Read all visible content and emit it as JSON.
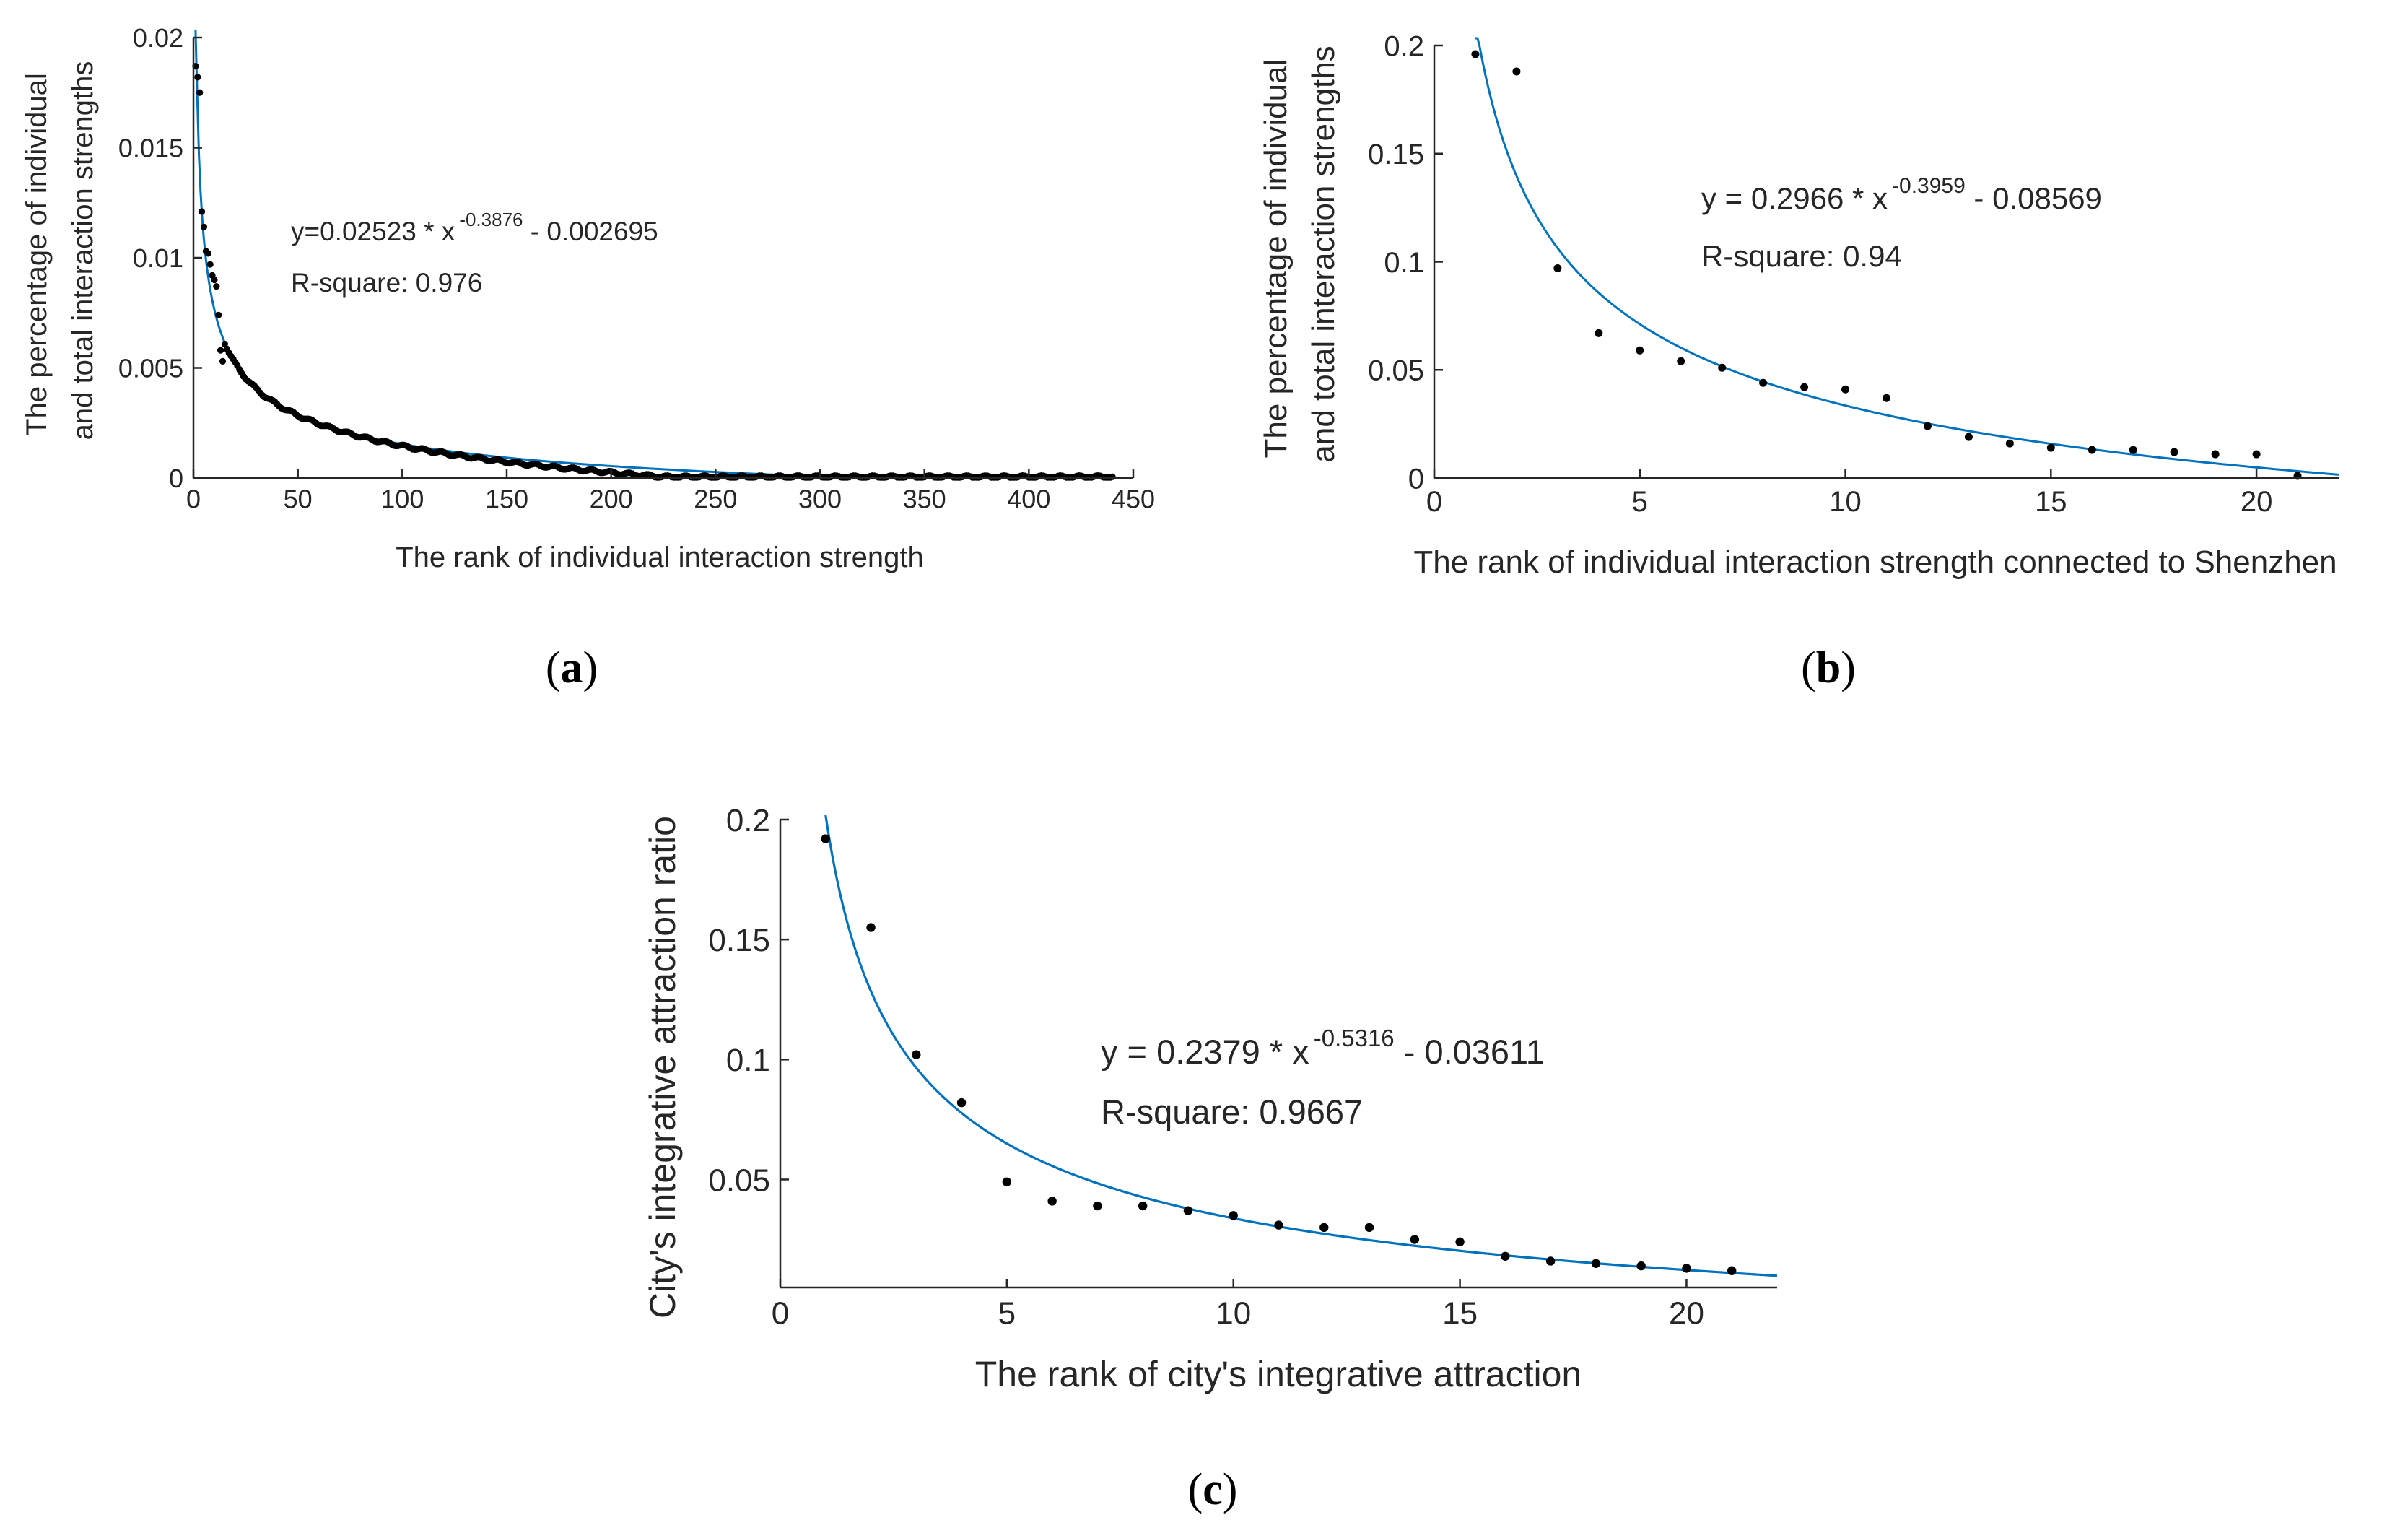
{
  "colors": {
    "fit": "#0072BD",
    "points": "#000000",
    "axes": "#262626"
  },
  "chart_data": [
    {
      "id": "a",
      "type": "scatter",
      "caption_letter": "a",
      "xlabel": "The rank of individual interaction strength",
      "ylabel_lines": [
        "The percentage of individual",
        "and total interaction strengths"
      ],
      "xlim": [
        0,
        450
      ],
      "ylim": [
        0,
        0.02
      ],
      "xticks": [
        0,
        50,
        100,
        150,
        200,
        250,
        300,
        350,
        400,
        450
      ],
      "yticks": [
        0,
        0.005,
        0.01,
        0.015,
        0.02
      ],
      "xtick_labels": [
        "0",
        "50",
        "100",
        "150",
        "200",
        "250",
        "300",
        "350",
        "400",
        "450"
      ],
      "ytick_labels": [
        "0",
        "0.005",
        "0.01",
        "0.015",
        "0.02"
      ],
      "equation": {
        "prefix": "y=0.02523 * x",
        "exponent": "-0.3876",
        "suffix": " - 0.002695"
      },
      "rsquare_text": "R-square: 0.976",
      "fit": {
        "a": 0.02523,
        "b": -0.3876,
        "c": -0.002695,
        "x_from": 1,
        "x_to": 320
      },
      "dense_points": {
        "x_from": 15,
        "x_to": 440,
        "step": 1,
        "noise": 0.00012
      },
      "points": [
        [
          1,
          0.0187
        ],
        [
          2,
          0.0182
        ],
        [
          3,
          0.0175
        ],
        [
          4,
          0.0121
        ],
        [
          5,
          0.0114
        ],
        [
          6,
          0.0103
        ],
        [
          7,
          0.0102
        ],
        [
          8,
          0.0097
        ],
        [
          9,
          0.0092
        ],
        [
          10,
          0.009
        ],
        [
          11,
          0.0087
        ],
        [
          12,
          0.0074
        ],
        [
          13,
          0.0058
        ],
        [
          14,
          0.0053
        ]
      ]
    },
    {
      "id": "b",
      "type": "scatter",
      "caption_letter": "b",
      "xlabel": "The rank of individual interaction strength connected to Shenzhen",
      "ylabel_lines": [
        "The percentage of individual",
        "and total interaction strengths"
      ],
      "xlim": [
        0,
        22
      ],
      "ylim": [
        0,
        0.2
      ],
      "xticks": [
        0,
        5,
        10,
        15,
        20
      ],
      "yticks": [
        0,
        0.05,
        0.1,
        0.15,
        0.2
      ],
      "xtick_labels": [
        "0",
        "5",
        "10",
        "15",
        "20"
      ],
      "ytick_labels": [
        "0",
        "0.05",
        "0.1",
        "0.15",
        "0.2"
      ],
      "equation": {
        "prefix": "y = 0.2966 * x",
        "exponent": "-0.3959",
        "suffix": " - 0.08569"
      },
      "rsquare_text": "R-square: 0.94",
      "fit": {
        "a": 0.2966,
        "b": -0.3959,
        "c": -0.08569,
        "x_from": 1,
        "x_to": 22
      },
      "points": [
        [
          1,
          0.196
        ],
        [
          2,
          0.188
        ],
        [
          3,
          0.097
        ],
        [
          4,
          0.067
        ],
        [
          5,
          0.059
        ],
        [
          6,
          0.054
        ],
        [
          7,
          0.051
        ],
        [
          8,
          0.044
        ],
        [
          9,
          0.042
        ],
        [
          10,
          0.041
        ],
        [
          11,
          0.037
        ],
        [
          12,
          0.024
        ],
        [
          13,
          0.019
        ],
        [
          14,
          0.016
        ],
        [
          15,
          0.014
        ],
        [
          16,
          0.013
        ],
        [
          17,
          0.013
        ],
        [
          18,
          0.012
        ],
        [
          19,
          0.011
        ],
        [
          20,
          0.011
        ],
        [
          21,
          0.001
        ]
      ]
    },
    {
      "id": "c",
      "type": "scatter",
      "caption_letter": "c",
      "xlabel": "The rank of city's integrative attraction",
      "ylabel_lines": [
        "City's integrative attraction ratio"
      ],
      "xlim": [
        0,
        22
      ],
      "ylim": [
        0.005,
        0.2
      ],
      "xticks": [
        0,
        5,
        10,
        15,
        20
      ],
      "yticks": [
        0.05,
        0.1,
        0.15,
        0.2
      ],
      "xtick_labels": [
        "0",
        "5",
        "10",
        "15",
        "20"
      ],
      "ytick_labels": [
        "0.05",
        "0.1",
        "0.15",
        "0.2"
      ],
      "equation": {
        "prefix": "y = 0.2379 * x",
        "exponent": "-0.5316",
        "suffix": " - 0.03611"
      },
      "rsquare_text": "R-square: 0.9667",
      "fit": {
        "a": 0.2379,
        "b": -0.5316,
        "c": -0.03611,
        "x_from": 1,
        "x_to": 22
      },
      "points": [
        [
          1,
          0.192
        ],
        [
          2,
          0.155
        ],
        [
          3,
          0.102
        ],
        [
          4,
          0.082
        ],
        [
          5,
          0.049
        ],
        [
          6,
          0.041
        ],
        [
          7,
          0.039
        ],
        [
          8,
          0.039
        ],
        [
          9,
          0.037
        ],
        [
          10,
          0.035
        ],
        [
          11,
          0.031
        ],
        [
          12,
          0.03
        ],
        [
          13,
          0.03
        ],
        [
          14,
          0.025
        ],
        [
          15,
          0.024
        ],
        [
          16,
          0.018
        ],
        [
          17,
          0.016
        ],
        [
          18,
          0.015
        ],
        [
          19,
          0.014
        ],
        [
          20,
          0.013
        ],
        [
          21,
          0.012
        ]
      ]
    }
  ]
}
